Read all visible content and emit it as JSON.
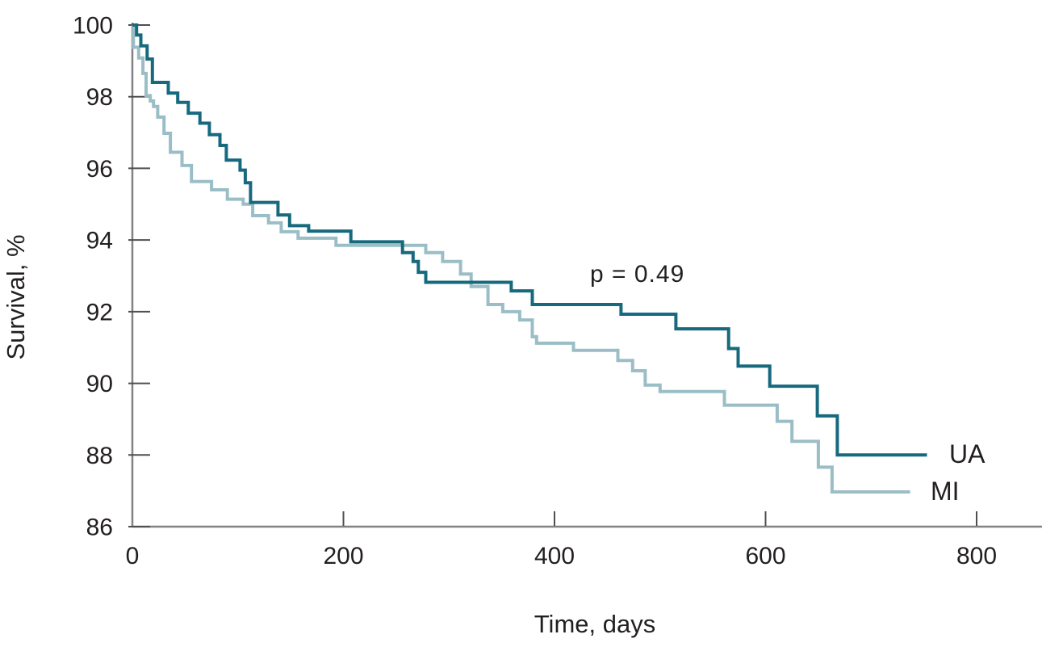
{
  "figure": {
    "background": "#ffffff"
  },
  "chart_data": {
    "type": "line",
    "style": "kaplan-meier-step",
    "title": "",
    "xlabel": "Time, days",
    "ylabel": "Survival, %",
    "xlim": [
      0,
      862
    ],
    "ylim": [
      86,
      100
    ],
    "xticks": [
      0,
      200,
      400,
      600,
      800
    ],
    "yticks": [
      86,
      88,
      90,
      92,
      94,
      96,
      98,
      100
    ],
    "grid": false,
    "axis_color": "#808285",
    "tick_color": "#4e4f51",
    "text_color": "#231f20",
    "annotation": {
      "text": "p = 0.49",
      "t": 434,
      "v": 92.85
    },
    "series": [
      {
        "name": "UA",
        "color": "#17697e",
        "line_width": 4,
        "end_t": 753,
        "points": [
          [
            0,
            100
          ],
          [
            4,
            99.72
          ],
          [
            8,
            99.42
          ],
          [
            14,
            99.05
          ],
          [
            19,
            98.4
          ],
          [
            34,
            98.1
          ],
          [
            43,
            97.84
          ],
          [
            53,
            97.54
          ],
          [
            64,
            97.26
          ],
          [
            73,
            96.94
          ],
          [
            83,
            96.64
          ],
          [
            89,
            96.23
          ],
          [
            102,
            95.95
          ],
          [
            107,
            95.6
          ],
          [
            112,
            95.05
          ],
          [
            138,
            94.7
          ],
          [
            149,
            94.4
          ],
          [
            167,
            94.25
          ],
          [
            207,
            93.95
          ],
          [
            256,
            93.65
          ],
          [
            266,
            93.4
          ],
          [
            271,
            93.1
          ],
          [
            278,
            92.82
          ],
          [
            359,
            92.58
          ],
          [
            379,
            92.2
          ],
          [
            463,
            91.93
          ],
          [
            515,
            91.52
          ],
          [
            565,
            90.97
          ],
          [
            574,
            90.48
          ],
          [
            604,
            89.92
          ],
          [
            649,
            89.09
          ],
          [
            668,
            88.0
          ]
        ]
      },
      {
        "name": "MI",
        "color": "#9bbec6",
        "line_width": 4,
        "end_t": 737,
        "points": [
          [
            0,
            100
          ],
          [
            1,
            99.38
          ],
          [
            6,
            99.08
          ],
          [
            10,
            98.65
          ],
          [
            13,
            98.03
          ],
          [
            17,
            97.88
          ],
          [
            20,
            97.73
          ],
          [
            24,
            97.43
          ],
          [
            30,
            96.98
          ],
          [
            36,
            96.45
          ],
          [
            47,
            96.08
          ],
          [
            56,
            95.63
          ],
          [
            75,
            95.4
          ],
          [
            90,
            95.14
          ],
          [
            105,
            95.0
          ],
          [
            114,
            94.68
          ],
          [
            129,
            94.48
          ],
          [
            141,
            94.23
          ],
          [
            157,
            94.05
          ],
          [
            193,
            93.85
          ],
          [
            278,
            93.65
          ],
          [
            294,
            93.4
          ],
          [
            311,
            93.05
          ],
          [
            321,
            92.7
          ],
          [
            337,
            92.2
          ],
          [
            351,
            92.0
          ],
          [
            367,
            91.77
          ],
          [
            379,
            91.3
          ],
          [
            383,
            91.12
          ],
          [
            418,
            90.92
          ],
          [
            460,
            90.64
          ],
          [
            474,
            90.35
          ],
          [
            486,
            89.95
          ],
          [
            500,
            89.77
          ],
          [
            561,
            89.39
          ],
          [
            611,
            88.94
          ],
          [
            625,
            88.38
          ],
          [
            650,
            87.66
          ],
          [
            663,
            86.97
          ]
        ]
      }
    ]
  }
}
